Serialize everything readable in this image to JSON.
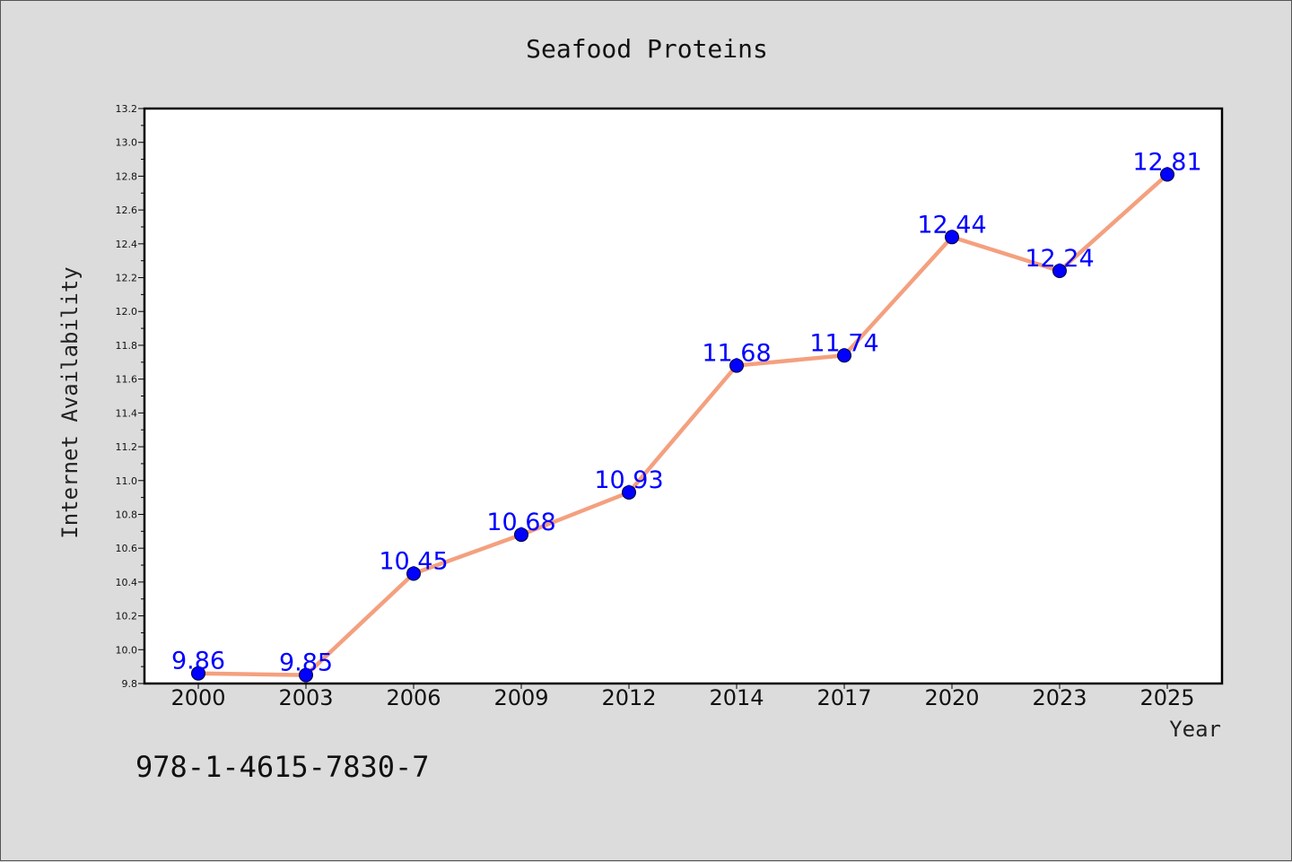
{
  "chart_data": {
    "type": "line",
    "title": "Seafood Proteins",
    "xlabel": "Year",
    "ylabel": "Internet Availability",
    "categories": [
      "2000",
      "2003",
      "2006",
      "2009",
      "2012",
      "2014",
      "2017",
      "2020",
      "2023",
      "2025"
    ],
    "series": [
      {
        "values": [
          9.86,
          9.85,
          10.45,
          10.68,
          10.93,
          11.68,
          11.74,
          12.44,
          12.24,
          12.81
        ]
      }
    ],
    "data_labels": [
      "9.86",
      "9.85",
      "10.45",
      "10.68",
      "10.93",
      "11.68",
      "11.74",
      "12.44",
      "12.24",
      "12.81"
    ],
    "ylim": [
      9.8,
      13.2
    ],
    "yticks": [
      "9.8",
      "10.0",
      "10.2",
      "10.4",
      "10.6",
      "10.8",
      "11.0",
      "11.2",
      "11.4",
      "11.6",
      "11.8",
      "12.0",
      "12.2",
      "12.4",
      "12.6",
      "12.8",
      "13.0",
      "13.2"
    ],
    "grid": false,
    "colors": {
      "line": "#f4a07f",
      "marker": "#0000ff",
      "label": "#0000ff",
      "background": "#dcdcdc",
      "plot_background": "#ffffff"
    }
  },
  "footer": {
    "text": "978-1-4615-7830-7"
  }
}
